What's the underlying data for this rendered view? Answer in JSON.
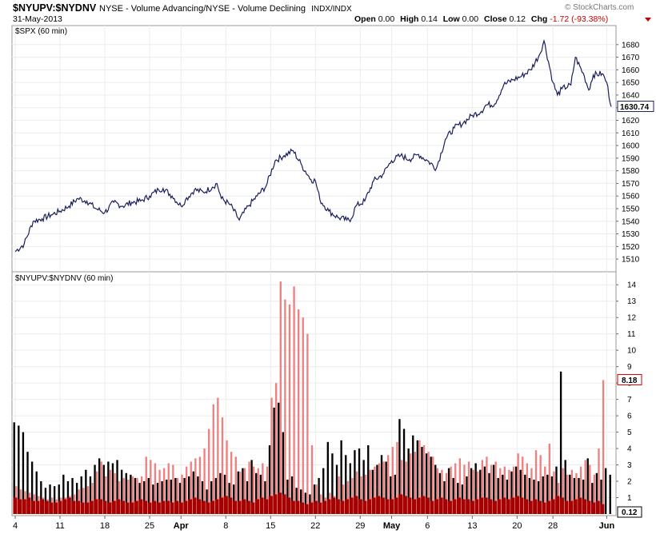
{
  "header": {
    "symbol": "$NYUPV:$NYDNV",
    "description": "NYSE - Volume Advancing/NYSE - Volume Declining",
    "exchange": "INDX/INDX",
    "date": "31-May-2013",
    "open_label": "Open",
    "open": "0.00",
    "high_label": "High",
    "high": "0.14",
    "low_label": "Low",
    "low": "0.00",
    "close_label": "Close",
    "close": "0.12",
    "chg_label": "Chg",
    "chg": "-1.72 (-93.38%)",
    "chg_color": "#cc0000",
    "watermark": "© StockCharts.com"
  },
  "chart_data": [
    {
      "type": "line",
      "title": "$SPX (60 min)",
      "last_label": "1630.74",
      "line_color": "#1a1f5c",
      "ylim": [
        1505,
        1690
      ],
      "y_ticks": [
        1510,
        1520,
        1530,
        1540,
        1550,
        1560,
        1570,
        1580,
        1590,
        1600,
        1610,
        1620,
        1630,
        1640,
        1650,
        1660,
        1670,
        1680
      ],
      "series": [
        {
          "points": [
            [
              0,
              1516
            ],
            [
              2,
              1522
            ],
            [
              4,
              1540
            ],
            [
              6,
              1542
            ],
            [
              8,
              1545
            ],
            [
              10,
              1548
            ],
            [
              12,
              1552
            ],
            [
              14,
              1558
            ],
            [
              16,
              1556
            ],
            [
              18,
              1550
            ],
            [
              20,
              1547
            ],
            [
              22,
              1555
            ],
            [
              24,
              1552
            ],
            [
              26,
              1555
            ],
            [
              28,
              1556
            ],
            [
              30,
              1560
            ],
            [
              32,
              1565
            ],
            [
              33,
              1566
            ],
            [
              35,
              1560
            ],
            [
              37,
              1552
            ],
            [
              38,
              1557
            ],
            [
              40,
              1565
            ],
            [
              42,
              1563
            ],
            [
              44,
              1567
            ],
            [
              45,
              1570
            ],
            [
              46,
              1558
            ],
            [
              48,
              1553
            ],
            [
              50,
              1541
            ],
            [
              52,
              1552
            ],
            [
              54,
              1560
            ],
            [
              56,
              1568
            ],
            [
              58,
              1588
            ],
            [
              60,
              1592
            ],
            [
              62,
              1596
            ],
            [
              64,
              1584
            ],
            [
              66,
              1573
            ],
            [
              67,
              1572
            ],
            [
              68,
              1557
            ],
            [
              70,
              1548
            ],
            [
              72,
              1543
            ],
            [
              74,
              1541
            ],
            [
              75,
              1542
            ],
            [
              76,
              1552
            ],
            [
              78,
              1556
            ],
            [
              80,
              1572
            ],
            [
              82,
              1577
            ],
            [
              84,
              1588
            ],
            [
              86,
              1592
            ],
            [
              88,
              1589
            ],
            [
              90,
              1593
            ],
            [
              92,
              1588
            ],
            [
              94,
              1582
            ],
            [
              96,
              1605
            ],
            [
              98,
              1614
            ],
            [
              100,
              1618
            ],
            [
              102,
              1624
            ],
            [
              104,
              1627
            ],
            [
              105,
              1632
            ],
            [
              107,
              1633
            ],
            [
              109,
              1648
            ],
            [
              111,
              1652
            ],
            [
              113,
              1655
            ],
            [
              115,
              1660
            ],
            [
              117,
              1672
            ],
            [
              118,
              1683
            ],
            [
              120,
              1650
            ],
            [
              121,
              1640
            ],
            [
              122,
              1645
            ],
            [
              124,
              1648
            ],
            [
              125,
              1670
            ],
            [
              127,
              1655
            ],
            [
              128,
              1644
            ],
            [
              129,
              1656
            ],
            [
              131,
              1657
            ],
            [
              132,
              1650
            ],
            [
              133,
              1630.74
            ]
          ]
        }
      ]
    },
    {
      "type": "bar",
      "title": "$NYUPV:$NYDNV (60 min)",
      "last_label": "8.18",
      "last_close_label": "0.12",
      "ylim": [
        0,
        14.5
      ],
      "y_ticks": [
        1,
        2,
        3,
        4,
        5,
        6,
        7,
        8,
        9,
        10,
        11,
        12,
        13,
        14
      ],
      "x_labels": [
        {
          "label": "4",
          "x": 0
        },
        {
          "label": "11",
          "x": 10
        },
        {
          "label": "18",
          "x": 20
        },
        {
          "label": "25",
          "x": 30
        },
        {
          "label": "Apr",
          "x": 37
        },
        {
          "label": "8",
          "x": 47
        },
        {
          "label": "15",
          "x": 57
        },
        {
          "label": "22",
          "x": 67
        },
        {
          "label": "29",
          "x": 77
        },
        {
          "label": "May",
          "x": 84
        },
        {
          "label": "6",
          "x": 92
        },
        {
          "label": "13",
          "x": 102
        },
        {
          "label": "20",
          "x": 112
        },
        {
          "label": "28",
          "x": 120
        },
        {
          "label": "Jun",
          "x": 132
        }
      ],
      "series": [
        {
          "name": "",
          "color": "#000000",
          "values": [
            5.6,
            5.4,
            5.0,
            3.8,
            3.2,
            2.6,
            2.0,
            1.6,
            1.8,
            1.7,
            1.8,
            2.4,
            2.0,
            2.2,
            1.9,
            2.3,
            2.7,
            2.3,
            3.0,
            3.4,
            3.0,
            3.2,
            3.1,
            3.3,
            2.7,
            2.5,
            2.4,
            2.2,
            1.9,
            2.0,
            2.2,
            1.8,
            1.9,
            2.0,
            2.1,
            2.1,
            2.2,
            1.9,
            2.2,
            2.3,
            2.6,
            2.3,
            2.0,
            1.5,
            2.0,
            2.2,
            2.5,
            2.4,
            1.9,
            1.8,
            2.6,
            2.8,
            2.0,
            3.3,
            2.5,
            2.4,
            2.0,
            4.2,
            6.5,
            6.8,
            5.0,
            2.1,
            2.3,
            1.6,
            1.5,
            1.3,
            1.2,
            1.8,
            2.2,
            2.8,
            4.4,
            3.7,
            3.0,
            4.5,
            3.6,
            3.1,
            3.9,
            4.0,
            3.3,
            4.2,
            2.7,
            3.0,
            3.6,
            3.2,
            2.3,
            2.4,
            5.8,
            5.2,
            4.0,
            4.8,
            4.5,
            4.1,
            3.7,
            3.5,
            3.0,
            2.5,
            2.0,
            2.8,
            2.2,
            1.9,
            1.8,
            2.3,
            2.8,
            3.1,
            2.7,
            2.9,
            2.5,
            3.0,
            2.2,
            2.4,
            2.1,
            2.6,
            2.9,
            2.7,
            2.4,
            2.2,
            2.1,
            2.0,
            2.3,
            2.4,
            2.3,
            2.9,
            8.7,
            3.3,
            2.4,
            2.2,
            2.2,
            2.1,
            3.4,
            1.9,
            2.5,
            2.1,
            2.8,
            2.4
          ]
        },
        {
          "name": "",
          "color": "#f08080",
          "values": [
            1.7,
            1.5,
            1.4,
            1.3,
            1.2,
            1.1,
            1.0,
            0.9,
            1.0,
            0.9,
            1.0,
            1.0,
            1.1,
            1.2,
            1.5,
            1.6,
            1.7,
            1.9,
            2.6,
            3.2,
            2.3,
            2.7,
            2.5,
            2.0,
            2.2,
            2.1,
            2.3,
            2.2,
            2.3,
            3.5,
            3.3,
            3.1,
            2.7,
            2.8,
            3.1,
            3.0,
            2.2,
            2.4,
            2.9,
            3.2,
            3.4,
            3.5,
            4.0,
            5.2,
            6.7,
            7.1,
            5.9,
            4.5,
            3.8,
            3.5,
            2.6,
            2.8,
            3.2,
            2.9,
            2.8,
            3.1,
            2.9,
            7.1,
            8.0,
            14.2,
            13.1,
            12.8,
            13.9,
            12.5,
            12.0,
            11.0,
            4.2,
            1.8,
            1.2,
            1.0,
            1.3,
            1.1,
            2.3,
            1.8,
            2.0,
            2.2,
            2.6,
            2.3,
            2.4,
            2.7,
            2.9,
            3.1,
            3.2,
            3.6,
            4.1,
            4.4,
            3.3,
            3.2,
            3.7,
            3.8,
            4.5,
            4.2,
            3.8,
            3.5,
            2.8,
            2.7,
            2.5,
            2.9,
            3.1,
            3.4,
            3.0,
            3.2,
            2.7,
            2.6,
            3.3,
            3.5,
            3.0,
            3.2,
            2.8,
            2.9,
            2.7,
            2.9,
            3.7,
            3.5,
            3.1,
            2.8,
            3.9,
            3.6,
            2.9,
            4.3,
            2.6,
            1.9,
            2.8,
            2.4,
            2.7,
            2.5,
            2.9,
            3.3,
            3.0,
            2.4,
            4.0,
            8.18
          ]
        },
        {
          "name": "",
          "color": "#a80000",
          "values": [
            1.0,
            0.9,
            0.9,
            1.0,
            0.8,
            0.8,
            0.9,
            0.8,
            0.7,
            0.7,
            0.8,
            0.9,
            1.0,
            0.8,
            0.8,
            0.7,
            0.7,
            0.8,
            0.9,
            0.9,
            0.8,
            0.7,
            0.8,
            0.9,
            0.8,
            0.7,
            0.7,
            0.8,
            0.9,
            0.8,
            0.7,
            0.8,
            0.7,
            0.8,
            0.8,
            0.7,
            0.8,
            0.7,
            0.8,
            0.9,
            1.0,
            0.9,
            0.8,
            0.7,
            0.8,
            0.9,
            1.0,
            1.1,
            1.0,
            0.8,
            0.8,
            0.9,
            0.8,
            0.7,
            0.9,
            1.0,
            0.9,
            1.1,
            1.2,
            1.3,
            1.2,
            1.0,
            0.8,
            0.8,
            0.7,
            0.6,
            0.7,
            0.8,
            0.7,
            0.8,
            0.9,
            1.0,
            0.9,
            0.8,
            0.9,
            1.0,
            1.1,
            0.9,
            0.8,
            0.9,
            1.0,
            1.1,
            1.0,
            0.9,
            0.9,
            1.0,
            1.2,
            1.1,
            1.0,
            0.9,
            1.0,
            1.1,
            1.0,
            0.8,
            0.9,
            1.0,
            0.9,
            0.8,
            0.9,
            1.0,
            0.9,
            0.9,
            0.8,
            0.9,
            1.0,
            1.0,
            0.9,
            0.8,
            0.9,
            1.0,
            0.9,
            1.0,
            1.1,
            1.0,
            0.9,
            0.8,
            0.9,
            0.8,
            0.7,
            0.8,
            0.9,
            1.1,
            1.0,
            0.8,
            0.8,
            0.9,
            1.0,
            0.9,
            0.8,
            0.7,
            0.8,
            0.6
          ]
        }
      ]
    }
  ]
}
